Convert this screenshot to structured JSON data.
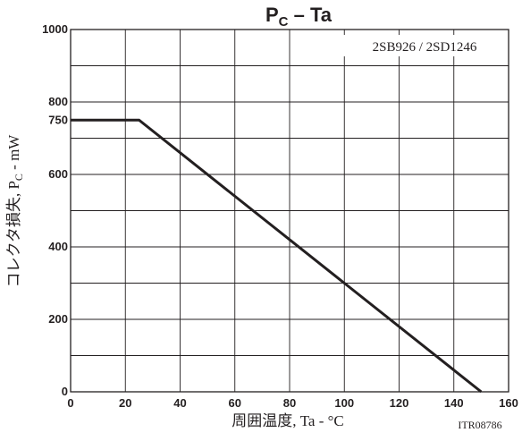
{
  "chart_data": {
    "type": "line",
    "title_main": "P",
    "title_sub": "C",
    "title_rest": " – Ta",
    "xlabel": "周囲温度, Ta - °C",
    "ylabel": "コレクタ損失, P",
    "ylabel_sub": "C",
    "ylabel_rest": " - mW",
    "xlim": [
      0,
      160
    ],
    "ylim": [
      0,
      1000
    ],
    "x_ticks": [
      0,
      20,
      40,
      60,
      80,
      100,
      120,
      140,
      160
    ],
    "y_ticks": [
      0,
      200,
      400,
      600,
      750,
      800,
      1000
    ],
    "x_grid": [
      20,
      40,
      60,
      80,
      100,
      120,
      140
    ],
    "y_grid": [
      100,
      200,
      300,
      400,
      500,
      600,
      700,
      800,
      900
    ],
    "grid": true,
    "legend_text": "2SB926 / 2SD1246",
    "series": [
      {
        "x": [
          0,
          25,
          150
        ],
        "y": [
          750,
          750,
          0
        ]
      }
    ],
    "figure_code": "ITR08786"
  }
}
